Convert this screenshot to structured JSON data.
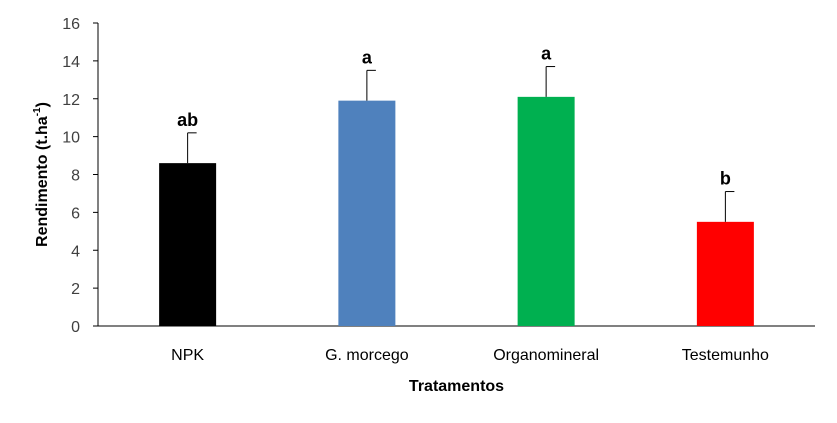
{
  "chart_data": {
    "type": "bar",
    "categories": [
      "NPK",
      "G. morcego",
      "Organomineral",
      "Testemunho"
    ],
    "values": [
      8.6,
      11.9,
      12.1,
      5.5
    ],
    "error_upper": [
      1.6,
      1.6,
      1.6,
      1.6
    ],
    "significance_labels": [
      "ab",
      "a",
      "a",
      "b"
    ],
    "bar_colors": [
      "#000000",
      "#4f81bd",
      "#00b050",
      "#ff0000"
    ],
    "xlabel": "Tratamentos",
    "ylabel": "Rendimento (t.ha",
    "ylabel_superscript": "-1",
    "ylabel_suffix": ")",
    "ylim": [
      0,
      16
    ],
    "yticks": [
      "0",
      "2",
      "4",
      "6",
      "8",
      "10",
      "12",
      "14",
      "16"
    ],
    "grid": false,
    "legend": "none"
  }
}
